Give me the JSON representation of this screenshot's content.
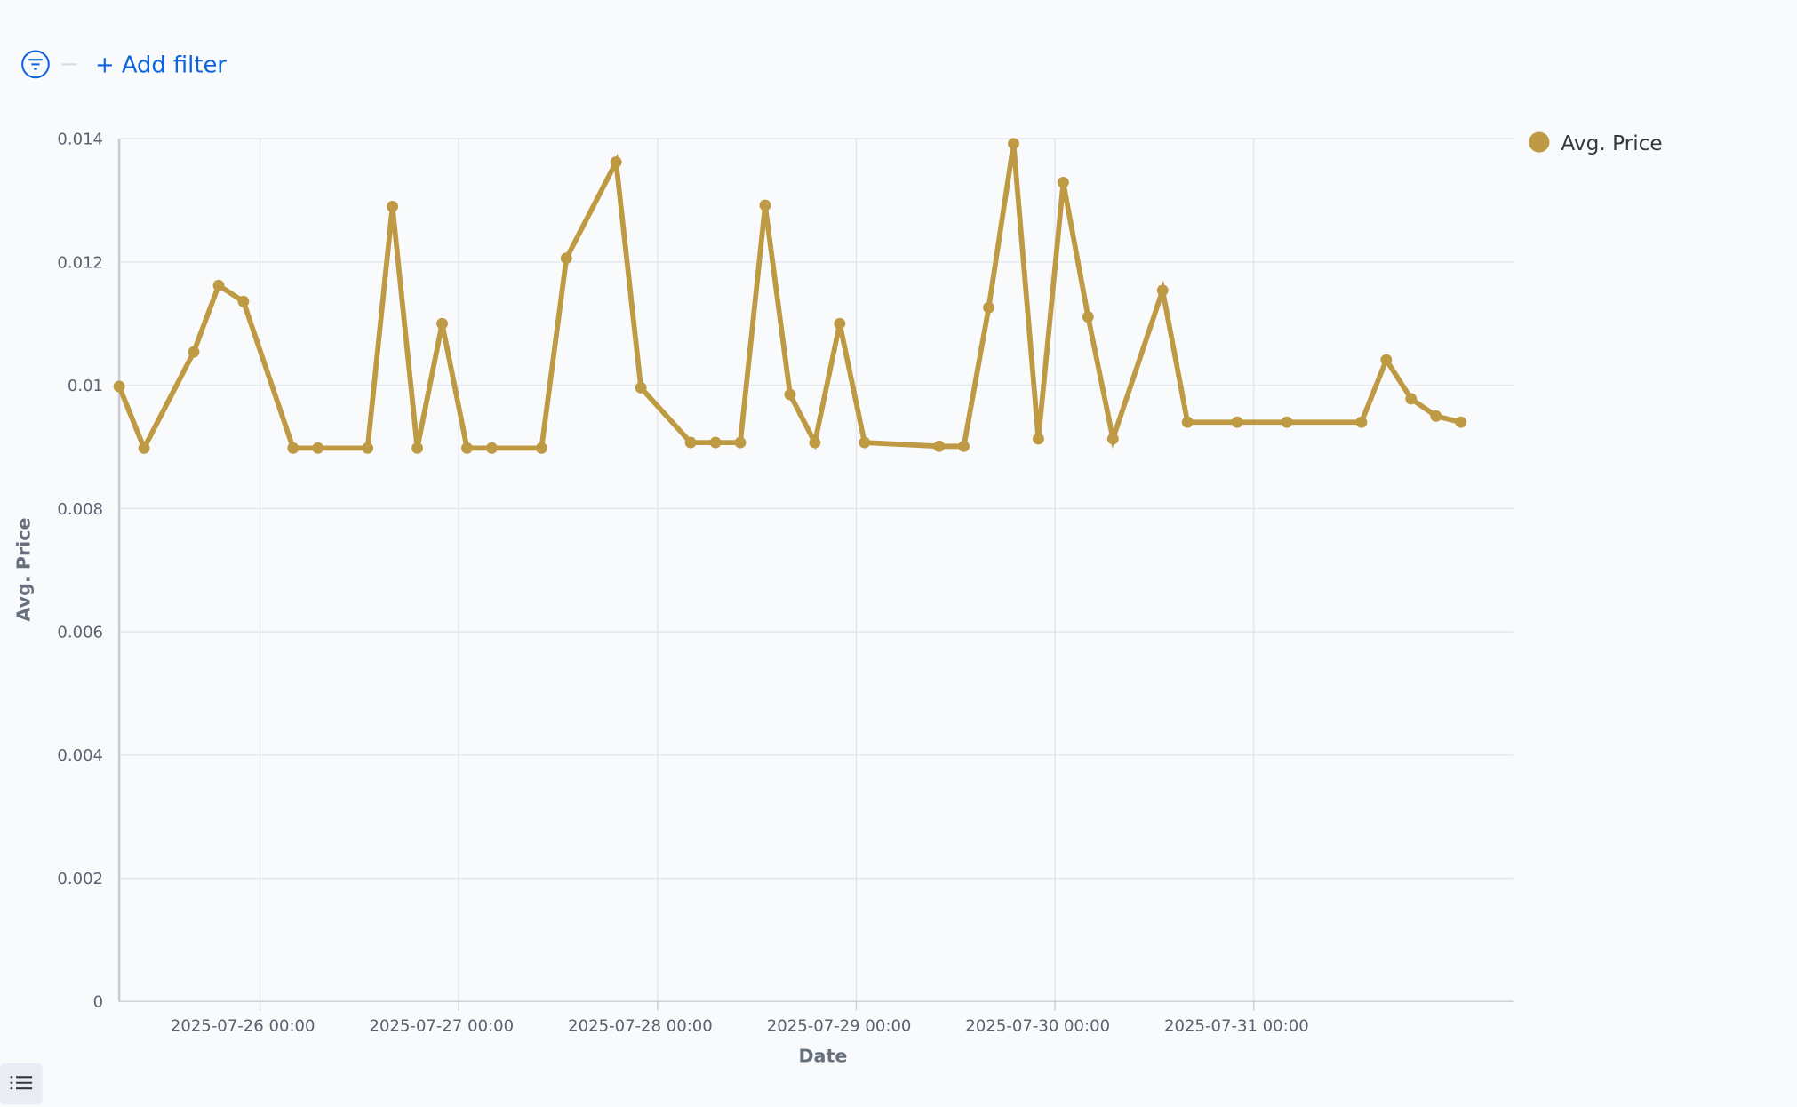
{
  "filter_bar": {
    "add_filter": "+ Add filter"
  },
  "chart_data": {
    "type": "line",
    "x_label": "Date",
    "y_label": "Avg. Price",
    "x": [
      "2025-07-25 07:00",
      "2025-07-25 10:00",
      "2025-07-25 16:00",
      "2025-07-25 19:00",
      "2025-07-25 22:00",
      "2025-07-26 04:00",
      "2025-07-26 07:00",
      "2025-07-26 13:00",
      "2025-07-26 16:00",
      "2025-07-26 19:00",
      "2025-07-26 22:00",
      "2025-07-27 01:00",
      "2025-07-27 04:00",
      "2025-07-27 10:00",
      "2025-07-27 13:00",
      "2025-07-27 19:00",
      "2025-07-27 22:00",
      "2025-07-28 04:00",
      "2025-07-28 07:00",
      "2025-07-28 10:00",
      "2025-07-28 13:00",
      "2025-07-28 16:00",
      "2025-07-28 19:00",
      "2025-07-28 22:00",
      "2025-07-29 01:00",
      "2025-07-29 10:00",
      "2025-07-29 13:00",
      "2025-07-29 16:00",
      "2025-07-29 19:00",
      "2025-07-29 22:00",
      "2025-07-30 01:00",
      "2025-07-30 04:00",
      "2025-07-30 07:00",
      "2025-07-30 13:00",
      "2025-07-30 16:00",
      "2025-07-30 22:00",
      "2025-07-31 04:00",
      "2025-07-31 13:00",
      "2025-07-31 16:00",
      "2025-07-31 19:00",
      "2025-07-31 22:00",
      "2025-08-01 01:00"
    ],
    "series": [
      {
        "name": "Avg. Price",
        "color": "#bf9a45",
        "values": [
          0.00998,
          0.00898,
          0.01054,
          0.01162,
          0.01136,
          0.00898,
          0.00898,
          0.00898,
          0.0129,
          0.00898,
          0.011,
          0.00898,
          0.00898,
          0.00898,
          0.01206,
          0.01362,
          0.00996,
          0.00907,
          0.00907,
          0.00907,
          0.01292,
          0.00985,
          0.00907,
          0.011,
          0.00907,
          0.00901,
          0.00901,
          0.01126,
          0.01392,
          0.00913,
          0.01329,
          0.01111,
          0.00913,
          0.01154,
          0.0094,
          0.0094,
          0.0094,
          0.0094,
          0.01041,
          0.00978,
          0.0095,
          0.0094
        ]
      }
    ],
    "xlim": [
      "2025-07-25 07:00",
      "2025-08-01 07:25"
    ],
    "xticks": [
      "2025-07-26 00:00",
      "2025-07-27 00:00",
      "2025-07-28 00:00",
      "2025-07-29 00:00",
      "2025-07-30 00:00",
      "2025-07-31 00:00"
    ],
    "ylim": [
      0,
      0.014
    ],
    "yticks": [
      0,
      0.002,
      0.004,
      0.006,
      0.008,
      0.01,
      0.012,
      0.014
    ],
    "grid": true,
    "legend": "top-right"
  }
}
